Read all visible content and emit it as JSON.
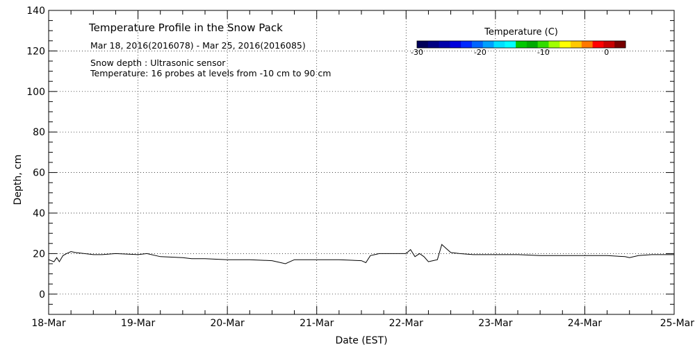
{
  "chart_data": {
    "type": "line",
    "title": "Temperature Profile in the Snow Pack",
    "subtitle": "Mar 18, 2016(2016078) - Mar 25, 2016(2016085)",
    "notes": [
      "Snow depth : Ultrasonic sensor",
      "Temperature: 16 probes at levels from -10 cm to 90 cm"
    ],
    "xlabel": "Date (EST)",
    "ylabel": "Depth, cm",
    "x_categories": [
      "18-Mar",
      "19-Mar",
      "20-Mar",
      "21-Mar",
      "22-Mar",
      "23-Mar",
      "24-Mar",
      "25-Mar"
    ],
    "ylim": [
      -10,
      140
    ],
    "yticks": [
      "0",
      "20",
      "40",
      "60",
      "80",
      "100",
      "120",
      "140"
    ],
    "grid": true,
    "colorbar": {
      "title": "Temperature (C)",
      "tick_labels": [
        "-30",
        "-20",
        "-10",
        "0"
      ],
      "range": [
        -30,
        3
      ],
      "colors": [
        "#00005a",
        "#000082",
        "#0000aa",
        "#0000dc",
        "#0028ff",
        "#0064ff",
        "#00a0ff",
        "#00e0ff",
        "#00ffff",
        "#00c800",
        "#00aa00",
        "#32dc00",
        "#a0ff00",
        "#ffff00",
        "#ffc800",
        "#ff7800",
        "#ff0000",
        "#c80000",
        "#780000"
      ]
    },
    "series": [
      {
        "name": "Snow depth",
        "color": "#000000",
        "x_days": [
          0.0,
          0.06,
          0.09,
          0.12,
          0.16,
          0.2,
          0.25,
          0.3,
          0.4,
          0.5,
          0.6,
          0.75,
          1.0,
          1.1,
          1.25,
          1.5,
          1.6,
          1.75,
          2.0,
          2.25,
          2.5,
          2.65,
          2.7,
          2.75,
          3.0,
          3.25,
          3.5,
          3.55,
          3.6,
          3.65,
          3.7,
          3.8,
          4.0,
          4.05,
          4.1,
          4.15,
          4.2,
          4.25,
          4.3,
          4.35,
          4.4,
          4.45,
          4.5,
          4.6,
          4.75,
          5.0,
          5.25,
          5.5,
          5.75,
          6.0,
          6.25,
          6.45,
          6.5,
          6.6,
          6.75,
          7.0
        ],
        "values": [
          17,
          16,
          18,
          16,
          19,
          20,
          21,
          20.5,
          20,
          19.5,
          19.5,
          20,
          19.5,
          20,
          18.5,
          18,
          17.5,
          17.5,
          17,
          17,
          16.5,
          15,
          16,
          17,
          17,
          17,
          16.5,
          15.5,
          19,
          19.5,
          20,
          20,
          20,
          22,
          18.5,
          20,
          18.5,
          16,
          16.5,
          17,
          24.5,
          22.5,
          20.5,
          20,
          19.5,
          19.5,
          19.5,
          19,
          19,
          19,
          19,
          18.5,
          18,
          19,
          19.5,
          19.5
        ]
      }
    ]
  }
}
